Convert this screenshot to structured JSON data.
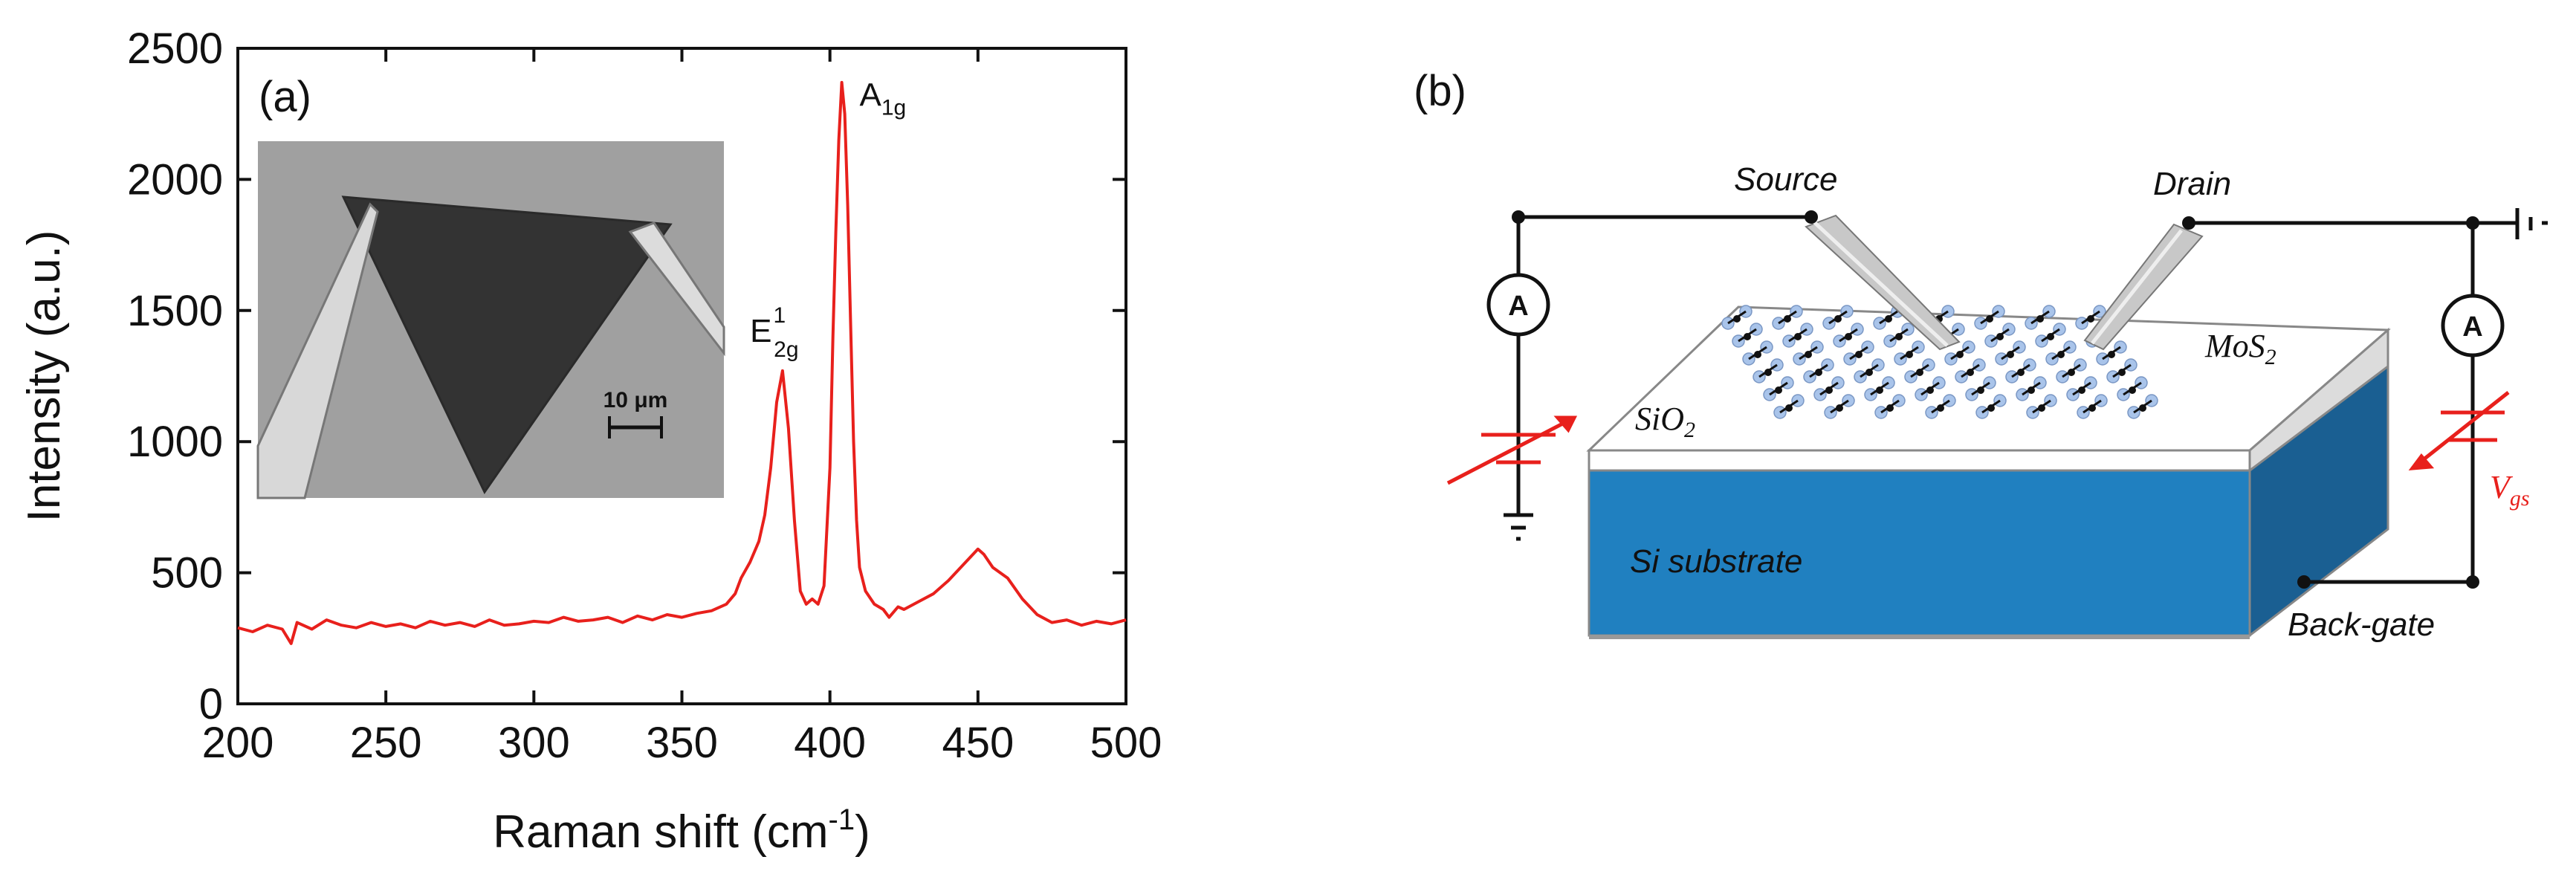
{
  "chart_data": {
    "type": "line",
    "panel_label": "(a)",
    "xlabel": "Raman shift (cm",
    "xlabel_sup": "-1",
    "xlabel_end": ")",
    "ylabel": "Intensity (a.u.)",
    "xlim": [
      200,
      500
    ],
    "ylim": [
      0,
      2500
    ],
    "xticks": [
      200,
      250,
      300,
      350,
      400,
      450,
      500
    ],
    "yticks": [
      0,
      500,
      1000,
      1500,
      2000,
      2500
    ],
    "series": [
      {
        "name": "Raman spectrum",
        "color": "#e8201c",
        "x": [
          200,
          205,
          210,
          215,
          218,
          220,
          225,
          230,
          235,
          240,
          245,
          250,
          255,
          260,
          265,
          270,
          275,
          280,
          285,
          290,
          295,
          300,
          305,
          310,
          315,
          320,
          325,
          330,
          335,
          340,
          345,
          350,
          355,
          360,
          365,
          368,
          370,
          373,
          376,
          378,
          380,
          382,
          384,
          386,
          388,
          390,
          392,
          394,
          396,
          398,
          400,
          401,
          402,
          403,
          404,
          405,
          406,
          407,
          408,
          409,
          410,
          412,
          415,
          418,
          420,
          423,
          425,
          430,
          435,
          440,
          445,
          450,
          452,
          455,
          460,
          465,
          470,
          475,
          480,
          485,
          490,
          495,
          500
        ],
        "y": [
          290,
          275,
          300,
          285,
          230,
          310,
          285,
          320,
          300,
          290,
          310,
          295,
          305,
          290,
          315,
          300,
          310,
          295,
          320,
          300,
          305,
          315,
          310,
          330,
          315,
          320,
          330,
          310,
          335,
          320,
          340,
          330,
          345,
          355,
          380,
          420,
          480,
          540,
          620,
          720,
          900,
          1150,
          1270,
          1050,
          700,
          430,
          380,
          400,
          380,
          450,
          900,
          1400,
          1800,
          2150,
          2370,
          2250,
          1900,
          1450,
          1000,
          700,
          520,
          430,
          380,
          360,
          330,
          370,
          360,
          390,
          420,
          470,
          530,
          590,
          570,
          520,
          480,
          400,
          340,
          310,
          320,
          300,
          315,
          305,
          320
        ]
      }
    ],
    "annotations": [
      {
        "text": "A",
        "sub": "1g",
        "x": 410,
        "y": 2280
      },
      {
        "text": "E",
        "sup": "1",
        "sub": "2g",
        "x": 373,
        "y": 1380
      }
    ],
    "inset": {
      "scale_label": "10 μm"
    }
  },
  "diagram": {
    "panel_label": "(b)",
    "source_label": "Source",
    "drain_label": "Drain",
    "mos2_label": "MoS",
    "mos2_sub": "2",
    "sio2_label": "SiO",
    "sio2_sub": "2",
    "substrate_label": "Si substrate",
    "backgate_label": "Back-gate",
    "vgs_label": "V",
    "vgs_sub": "gs",
    "ammeter_left": "A",
    "ammeter_right": "A",
    "colors": {
      "substrate": "#2080c0",
      "substrate_side": "#1a5f92",
      "oxide": "#ffffff",
      "voltage_source": "#e8201c",
      "mos2_s": "#a9c4ea",
      "mos2_mo": "#111111"
    }
  }
}
